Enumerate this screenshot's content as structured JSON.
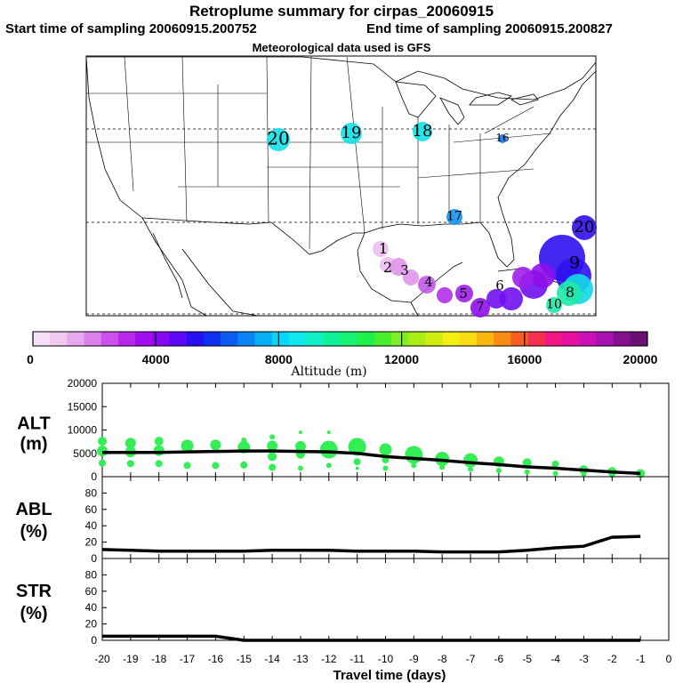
{
  "header": {
    "title": "Retroplume summary for cirpas_20060915",
    "start_label": "Start time of sampling",
    "start_value": "20060915.200752",
    "end_label": "End time of sampling",
    "end_value": "20060915.200827",
    "met_note": "Meteorological data used is GFS"
  },
  "colors": {
    "alt_marker": "#33ee55",
    "line": "#000000",
    "colorbar": [
      "#f8e0f8",
      "#f0c8f0",
      "#e8a8ee",
      "#dc80ec",
      "#cc50ec",
      "#b828ea",
      "#a010ee",
      "#8808f4",
      "#5e08f8",
      "#2810f6",
      "#1030f0",
      "#0a5cf2",
      "#0a84f4",
      "#08aef4",
      "#08d4f6",
      "#0ee8ee",
      "#0ef0c6",
      "#10f29a",
      "#16f274",
      "#1ef04c",
      "#48ee2c",
      "#80ee24",
      "#aaee18",
      "#d2ee10",
      "#f2f010",
      "#f8dc10",
      "#f8b810",
      "#f88c14",
      "#f85c20",
      "#f43050",
      "#f01880",
      "#e410a0",
      "#cc10b8",
      "#a810b0",
      "#84108c",
      "#6a1070"
    ]
  },
  "map": {
    "labels": [
      {
        "text": "20",
        "color": "#14e0e6"
      },
      {
        "text": "19",
        "color": "#14e0e6"
      },
      {
        "text": "18",
        "color": "#14e0e6"
      },
      {
        "text": "17",
        "color": "#1494f0"
      },
      {
        "text": "16",
        "color": "#1478f0"
      },
      {
        "text": "20",
        "color": "#3010e8"
      },
      {
        "text": "1",
        "color": "#e7b0ea"
      },
      {
        "text": "2",
        "color": "#e7b0ea"
      },
      {
        "text": "3",
        "color": "#dc90ea"
      },
      {
        "text": "4",
        "color": "#c050e8"
      },
      {
        "text": "5",
        "color": "#a020e8"
      },
      {
        "text": "6",
        "color": "#9010e8"
      },
      {
        "text": "7",
        "color": "#6010f0"
      },
      {
        "text": "8",
        "color": "#14d8e6"
      },
      {
        "text": "9",
        "color": "#2010f0"
      },
      {
        "text": "10",
        "color": "#20e8a8"
      }
    ]
  },
  "colorbar": {
    "tick_labels": [
      "0",
      "4000",
      "8000",
      "12000",
      "16000",
      "20000"
    ],
    "title": "Altitude (m)"
  },
  "chart_data": [
    {
      "type": "scatter",
      "panel": "ALT",
      "ylabel": "ALT",
      "yunit": "(m)",
      "ylim": [
        0,
        20000
      ],
      "yticks": [
        "0",
        "5000",
        "10000",
        "15000",
        "20000"
      ],
      "median_line": {
        "x": [
          -20,
          -19,
          -18,
          -17,
          -16,
          -15,
          -14,
          -13,
          -12,
          -11,
          -10,
          -9,
          -8,
          -7,
          -6,
          -5,
          -4,
          -3,
          -2,
          -1
        ],
        "y": [
          5200,
          5200,
          5200,
          5300,
          5400,
          5500,
          5500,
          5400,
          5300,
          5000,
          4300,
          3900,
          3500,
          3000,
          2600,
          2100,
          1800,
          1400,
          1000,
          700
        ]
      },
      "points": [
        {
          "x": -20,
          "y": 7600,
          "s": 5
        },
        {
          "x": -20,
          "y": 5500,
          "s": 6
        },
        {
          "x": -20,
          "y": 2900,
          "s": 4
        },
        {
          "x": -19,
          "y": 7200,
          "s": 6
        },
        {
          "x": -19,
          "y": 5300,
          "s": 6
        },
        {
          "x": -19,
          "y": 2800,
          "s": 4
        },
        {
          "x": -18,
          "y": 7600,
          "s": 5
        },
        {
          "x": -18,
          "y": 5600,
          "s": 6
        },
        {
          "x": -18,
          "y": 2800,
          "s": 4
        },
        {
          "x": -17,
          "y": 6600,
          "s": 7
        },
        {
          "x": -17,
          "y": 2400,
          "s": 4
        },
        {
          "x": -16,
          "y": 6800,
          "s": 6
        },
        {
          "x": -16,
          "y": 2400,
          "s": 4
        },
        {
          "x": -15,
          "y": 7800,
          "s": 3
        },
        {
          "x": -15,
          "y": 6300,
          "s": 7
        },
        {
          "x": -15,
          "y": 2500,
          "s": 4
        },
        {
          "x": -14,
          "y": 8500,
          "s": 3
        },
        {
          "x": -14,
          "y": 6600,
          "s": 6
        },
        {
          "x": -14,
          "y": 4300,
          "s": 5
        },
        {
          "x": -14,
          "y": 2000,
          "s": 4
        },
        {
          "x": -13,
          "y": 9500,
          "s": 2
        },
        {
          "x": -13,
          "y": 6500,
          "s": 6
        },
        {
          "x": -13,
          "y": 4800,
          "s": 5
        },
        {
          "x": -13,
          "y": 1800,
          "s": 3
        },
        {
          "x": -12,
          "y": 9500,
          "s": 2
        },
        {
          "x": -12,
          "y": 5800,
          "s": 10
        },
        {
          "x": -12,
          "y": 2400,
          "s": 3
        },
        {
          "x": -11,
          "y": 6400,
          "s": 10
        },
        {
          "x": -11,
          "y": 3200,
          "s": 4
        },
        {
          "x": -11,
          "y": 1800,
          "s": 2
        },
        {
          "x": -10,
          "y": 5800,
          "s": 7
        },
        {
          "x": -10,
          "y": 3600,
          "s": 4
        },
        {
          "x": -10,
          "y": 1800,
          "s": 3
        },
        {
          "x": -9,
          "y": 4700,
          "s": 10
        },
        {
          "x": -9,
          "y": 2400,
          "s": 3
        },
        {
          "x": -8,
          "y": 3800,
          "s": 8
        },
        {
          "x": -8,
          "y": 2000,
          "s": 3
        },
        {
          "x": -7,
          "y": 3500,
          "s": 8
        },
        {
          "x": -7,
          "y": 1600,
          "s": 3
        },
        {
          "x": -6,
          "y": 3200,
          "s": 6
        },
        {
          "x": -6,
          "y": 1300,
          "s": 3
        },
        {
          "x": -5,
          "y": 3000,
          "s": 5
        },
        {
          "x": -5,
          "y": 1000,
          "s": 3
        },
        {
          "x": -4,
          "y": 2700,
          "s": 4
        },
        {
          "x": -4,
          "y": 700,
          "s": 3
        },
        {
          "x": -3,
          "y": 1500,
          "s": 5
        },
        {
          "x": -3,
          "y": 600,
          "s": 3
        },
        {
          "x": -2,
          "y": 1100,
          "s": 5
        },
        {
          "x": -2,
          "y": 300,
          "s": 3
        },
        {
          "x": -1,
          "y": 700,
          "s": 5
        }
      ]
    },
    {
      "type": "line",
      "panel": "ABL",
      "ylabel": "ABL",
      "yunit": "(%)",
      "ylim": [
        0,
        100
      ],
      "yticks": [
        "0",
        "20",
        "40",
        "60",
        "80"
      ],
      "x": [
        -20,
        -19,
        -18,
        -17,
        -16,
        -15,
        -14,
        -13,
        -12,
        -11,
        -10,
        -9,
        -8,
        -7,
        -6,
        -5,
        -4,
        -3,
        -2,
        -1
      ],
      "y": [
        11,
        10,
        9,
        9,
        9,
        9,
        10,
        10,
        10,
        9,
        9,
        9,
        8,
        8,
        8,
        10,
        13,
        15,
        26,
        27
      ]
    },
    {
      "type": "line",
      "panel": "STR",
      "ylabel": "STR",
      "yunit": "(%)",
      "ylim": [
        0,
        100
      ],
      "yticks": [
        "0",
        "20",
        "40",
        "60",
        "80"
      ],
      "x": [
        -20,
        -19,
        -18,
        -17,
        -16,
        -15,
        -14,
        -13,
        -12,
        -11,
        -10,
        -9,
        -8,
        -7,
        -6,
        -5,
        -4,
        -3,
        -2,
        -1
      ],
      "y": [
        5,
        5,
        5,
        5,
        5,
        0,
        0,
        0,
        0,
        0,
        0,
        0,
        0,
        0,
        0,
        0,
        0,
        0,
        0,
        0
      ]
    }
  ],
  "xaxis": {
    "ticks": [
      "-20",
      "-19",
      "-18",
      "-17",
      "-16",
      "-15",
      "-14",
      "-13",
      "-12",
      "-11",
      "-10",
      "-9",
      "-8",
      "-7",
      "-6",
      "-5",
      "-4",
      "-3",
      "-2",
      "-1",
      "0"
    ],
    "xlabel": "Travel time (days)"
  }
}
